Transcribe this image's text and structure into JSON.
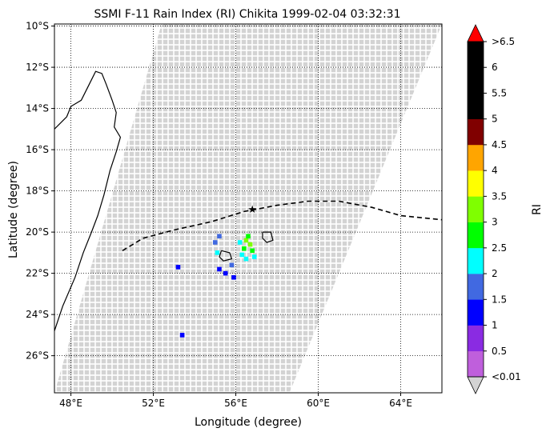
{
  "chart_data": {
    "type": "heatmap",
    "title": "SSMI F-11 Rain Index (RI) Chikita 1999-02-04 03:32:31",
    "xlabel": "Longitude (degree)",
    "ylabel": "Latitude (degree)",
    "xlim": [
      47.2,
      66.0
    ],
    "ylim": [
      -27.8,
      -9.9
    ],
    "xticks": [
      {
        "value": 48,
        "label": "48°E"
      },
      {
        "value": 52,
        "label": "52°E"
      },
      {
        "value": 56,
        "label": "56°E"
      },
      {
        "value": 60,
        "label": "60°E"
      },
      {
        "value": 64,
        "label": "64°E"
      }
    ],
    "yticks": [
      {
        "value": -10,
        "label": "10°S"
      },
      {
        "value": -12,
        "label": "12°S"
      },
      {
        "value": -14,
        "label": "14°S"
      },
      {
        "value": -16,
        "label": "16°S"
      },
      {
        "value": -18,
        "label": "18°S"
      },
      {
        "value": -20,
        "label": "20°S"
      },
      {
        "value": -22,
        "label": "22°S"
      },
      {
        "value": -24,
        "label": "24°S"
      },
      {
        "value": -26,
        "label": "26°S"
      }
    ],
    "grid": true,
    "grid_style": "dotted",
    "swath": {
      "no_rain_color": "#d3d3d3",
      "corners": [
        [
          52.4,
          -9.9
        ],
        [
          66.0,
          -9.9
        ],
        [
          58.6,
          -27.8
        ],
        [
          47.2,
          -27.8
        ]
      ]
    },
    "colorbar": {
      "label": "RI",
      "bounds": [
        0.01,
        0.5,
        1,
        1.5,
        2,
        2.5,
        3,
        3.5,
        4,
        4.5,
        5,
        5.5,
        6,
        6.5
      ],
      "labels": [
        "<0.01",
        "0.5",
        "1",
        "1.5",
        "2",
        "2.5",
        "3",
        "3.5",
        "4",
        "4.5",
        "5",
        "5.5",
        "6",
        ">6.5"
      ],
      "colors": [
        "#bf5fdc",
        "#8a2be2",
        "#0000ff",
        "#4169e1",
        "#00ffff",
        "#00ff00",
        "#7fff00",
        "#ffff00",
        "#ffa500",
        "#800000",
        "#000000",
        "#000000",
        "#000000"
      ],
      "under_color": "#d3d3d3",
      "over_color": "#ff0000"
    },
    "rain_cells": [
      {
        "lon": 56.5,
        "lat": -20.4,
        "ri": 3.2
      },
      {
        "lon": 56.7,
        "lat": -20.6,
        "ri": 3.0
      },
      {
        "lon": 56.4,
        "lat": -20.8,
        "ri": 2.8
      },
      {
        "lon": 56.6,
        "lat": -20.2,
        "ri": 2.7
      },
      {
        "lon": 56.8,
        "lat": -20.9,
        "ri": 2.6
      },
      {
        "lon": 56.3,
        "lat": -21.1,
        "ri": 2.4
      },
      {
        "lon": 56.5,
        "lat": -21.3,
        "ri": 2.3
      },
      {
        "lon": 56.9,
        "lat": -21.2,
        "ri": 2.2
      },
      {
        "lon": 56.2,
        "lat": -20.5,
        "ri": 2.1
      },
      {
        "lon": 55.1,
        "lat": -21.0,
        "ri": 2.2
      },
      {
        "lon": 55.0,
        "lat": -20.5,
        "ri": 1.8
      },
      {
        "lon": 55.2,
        "lat": -20.2,
        "ri": 1.5
      },
      {
        "lon": 55.8,
        "lat": -21.6,
        "ri": 1.6
      },
      {
        "lon": 55.5,
        "lat": -22.0,
        "ri": 1.4
      },
      {
        "lon": 55.9,
        "lat": -22.2,
        "ri": 1.2
      },
      {
        "lon": 55.2,
        "lat": -21.8,
        "ri": 1.3
      },
      {
        "lon": 53.2,
        "lat": -21.7,
        "ri": 1.2
      },
      {
        "lon": 53.4,
        "lat": -25.0,
        "ri": 1.1
      },
      {
        "lon": 56.8,
        "lat": -18.9,
        "ri": 6.8
      }
    ],
    "track": {
      "style": "dashed",
      "points": [
        [
          50.5,
          -20.9
        ],
        [
          51.5,
          -20.3
        ],
        [
          53.0,
          -19.9
        ],
        [
          54.8,
          -19.5
        ],
        [
          56.4,
          -19.0
        ],
        [
          58.0,
          -18.7
        ],
        [
          59.5,
          -18.5
        ],
        [
          61.0,
          -18.5
        ],
        [
          62.6,
          -18.8
        ],
        [
          64.0,
          -19.2
        ],
        [
          66.0,
          -19.4
        ]
      ]
    },
    "coastlines": [
      [
        [
          47.2,
          -24.8
        ],
        [
          47.6,
          -23.6
        ],
        [
          48.2,
          -22.2
        ],
        [
          48.6,
          -21.0
        ],
        [
          49.0,
          -20.0
        ],
        [
          49.3,
          -19.2
        ],
        [
          49.6,
          -18.2
        ],
        [
          49.9,
          -17.0
        ],
        [
          50.2,
          -16.1
        ],
        [
          50.4,
          -15.4
        ],
        [
          50.1,
          -14.9
        ],
        [
          50.2,
          -14.2
        ],
        [
          50.0,
          -13.6
        ],
        [
          49.7,
          -12.8
        ],
        [
          49.5,
          -12.3
        ],
        [
          49.2,
          -12.2
        ],
        [
          48.9,
          -12.8
        ],
        [
          48.5,
          -13.6
        ],
        [
          48.0,
          -13.9
        ],
        [
          47.8,
          -14.4
        ],
        [
          47.2,
          -15.0
        ]
      ],
      [
        [
          55.3,
          -20.9
        ],
        [
          55.7,
          -21.0
        ],
        [
          55.8,
          -21.3
        ],
        [
          55.4,
          -21.4
        ],
        [
          55.2,
          -21.2
        ],
        [
          55.3,
          -20.9
        ]
      ],
      [
        [
          57.3,
          -20.0
        ],
        [
          57.7,
          -20.0
        ],
        [
          57.8,
          -20.4
        ],
        [
          57.5,
          -20.5
        ],
        [
          57.3,
          -20.3
        ],
        [
          57.3,
          -20.0
        ]
      ]
    ]
  }
}
